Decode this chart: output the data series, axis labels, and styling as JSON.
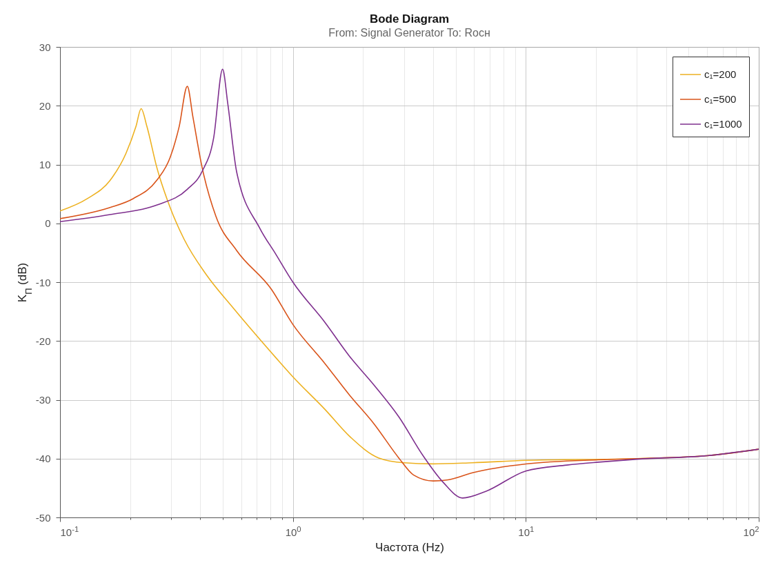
{
  "chart_data": {
    "type": "line",
    "title": "Bode Diagram",
    "subtitle": "From: Signal Generator  To: Rocн",
    "xlabel": "Частота  (Hz)",
    "ylabel": "K$_{П}$ (dB)",
    "log": "x",
    "grid": true,
    "legend": "top right",
    "xlim": [
      0.1,
      100
    ],
    "ylim": [
      -50,
      30
    ],
    "xticks": [
      {
        "value": 0.1,
        "label": "10$^{-1}$"
      },
      {
        "value": 0.2,
        "label": null
      },
      {
        "value": 0.3,
        "label": null
      },
      {
        "value": 0.4,
        "label": null
      },
      {
        "value": 0.5,
        "label": null
      },
      {
        "value": 0.6,
        "label": null
      },
      {
        "value": 0.7,
        "label": null
      },
      {
        "value": 0.8,
        "label": null
      },
      {
        "value": 0.9,
        "label": null
      },
      {
        "value": 1,
        "label": "10$^{0}$"
      },
      {
        "value": 2,
        "label": null
      },
      {
        "value": 3,
        "label": null
      },
      {
        "value": 4,
        "label": null
      },
      {
        "value": 5,
        "label": null
      },
      {
        "value": 6,
        "label": null
      },
      {
        "value": 7,
        "label": null
      },
      {
        "value": 8,
        "label": null
      },
      {
        "value": 9,
        "label": null
      },
      {
        "value": 10,
        "label": "10$^{1}$"
      },
      {
        "value": 20,
        "label": null
      },
      {
        "value": 30,
        "label": null
      },
      {
        "value": 40,
        "label": null
      },
      {
        "value": 50,
        "label": null
      },
      {
        "value": 60,
        "label": null
      },
      {
        "value": 70,
        "label": null
      },
      {
        "value": 80,
        "label": null
      },
      {
        "value": 90,
        "label": null
      },
      {
        "value": 100,
        "label": "10$^{2}$"
      }
    ],
    "yticks": [
      -50,
      -40,
      -30,
      -20,
      -10,
      0,
      10,
      20,
      30
    ],
    "series": [
      {
        "name": "c₁=200",
        "color": "#edb120",
        "x": [
          0.1,
          0.131,
          0.164,
          0.192,
          0.212,
          0.223,
          0.236,
          0.26,
          0.297,
          0.341,
          0.426,
          0.549,
          0.843,
          1,
          1.37,
          1.75,
          2.34,
          3,
          4,
          5.9,
          10,
          30,
          60,
          100
        ],
        "values": [
          2.1,
          4.2,
          7.3,
          11.9,
          16.5,
          19.5,
          16.5,
          9.6,
          2.7,
          -2.7,
          -8.8,
          -14.2,
          -22.8,
          -26.1,
          -31.6,
          -36.2,
          -39.9,
          -40.7,
          -40.9,
          -40.7,
          -40.3,
          -40,
          -39.5,
          -38.4
        ]
      },
      {
        "name": "c₁=500",
        "color": "#d95319",
        "x": [
          0.1,
          0.164,
          0.206,
          0.26,
          0.297,
          0.325,
          0.352,
          0.372,
          0.407,
          0.467,
          0.573,
          0.808,
          1,
          1.37,
          1.75,
          2.23,
          2.85,
          3.3,
          4,
          4.64,
          5.9,
          10,
          20.5,
          30,
          60,
          100
        ],
        "values": [
          0.8,
          2.7,
          4.2,
          7.3,
          11.2,
          16.5,
          23.3,
          18.1,
          9.6,
          1.2,
          -4.6,
          -11.2,
          -17.2,
          -23.8,
          -29.2,
          -34.1,
          -39.9,
          -42.8,
          -43.8,
          -43.6,
          -42.4,
          -40.9,
          -40.2,
          -40,
          -39.5,
          -38.4
        ]
      },
      {
        "name": "c₁=1000",
        "color": "#7e2f8e",
        "x": [
          0.1,
          0.164,
          0.26,
          0.352,
          0.407,
          0.457,
          0.499,
          0.525,
          0.573,
          0.72,
          0.843,
          1,
          1.37,
          1.75,
          2.23,
          2.85,
          3.62,
          4.41,
          5.35,
          6.7,
          10,
          15,
          20.5,
          30,
          60,
          100
        ],
        "values": [
          0.3,
          1.5,
          3.1,
          5.8,
          8.8,
          14.6,
          26.2,
          20.4,
          8.8,
          -0.8,
          -5.2,
          -10,
          -16.8,
          -22.6,
          -27.5,
          -32.9,
          -39.5,
          -44,
          -46.7,
          -45.6,
          -42.1,
          -41.1,
          -40.6,
          -40.1,
          -39.5,
          -38.4
        ]
      }
    ]
  }
}
